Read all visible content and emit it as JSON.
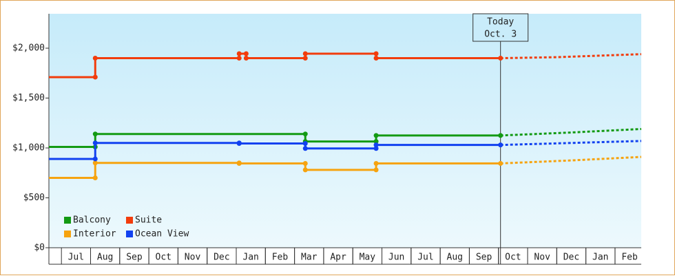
{
  "chart_data": {
    "type": "line",
    "ylim": [
      0,
      2345
    ],
    "yticks": [
      {
        "value": 0,
        "label": "$0"
      },
      {
        "value": 500,
        "label": "$500"
      },
      {
        "value": 1000,
        "label": "$1,000"
      },
      {
        "value": 1500,
        "label": "$1,500"
      },
      {
        "value": 2000,
        "label": "$2,000"
      }
    ],
    "xlim": [
      -0.43,
      19.9
    ],
    "xticks": [
      {
        "value": 0.5,
        "label": "Jul"
      },
      {
        "value": 1.5,
        "label": "Aug"
      },
      {
        "value": 2.5,
        "label": "Sep"
      },
      {
        "value": 3.5,
        "label": "Oct"
      },
      {
        "value": 4.5,
        "label": "Nov"
      },
      {
        "value": 5.5,
        "label": "Dec"
      },
      {
        "value": 6.5,
        "label": "Jan"
      },
      {
        "value": 7.5,
        "label": "Feb"
      },
      {
        "value": 8.5,
        "label": "Mar"
      },
      {
        "value": 9.5,
        "label": "Apr"
      },
      {
        "value": 10.5,
        "label": "May"
      },
      {
        "value": 11.5,
        "label": "Jun"
      },
      {
        "value": 12.5,
        "label": "Jul"
      },
      {
        "value": 13.5,
        "label": "Aug"
      },
      {
        "value": 14.5,
        "label": "Sep"
      },
      {
        "value": 15.5,
        "label": "Oct"
      },
      {
        "value": 16.5,
        "label": "Nov"
      },
      {
        "value": 17.5,
        "label": "Dec"
      },
      {
        "value": 18.5,
        "label": "Jan"
      },
      {
        "value": 19.5,
        "label": "Feb"
      }
    ],
    "annotation": {
      "lines": [
        "Today",
        "Oct. 3"
      ],
      "x": 15.07
    },
    "series": [
      {
        "name": "Balcony",
        "color": "#139a13",
        "x": [
          -0.43,
          1.16,
          1.16,
          8.37,
          8.37,
          10.8,
          10.8,
          15.07
        ],
        "values": [
          1010,
          1010,
          1140,
          1140,
          1065,
          1065,
          1125,
          1125
        ],
        "forecast": {
          "x": [
            15.07,
            17.5,
            19.9
          ],
          "values": [
            1125,
            1155,
            1190
          ]
        }
      },
      {
        "name": "Suite",
        "color": "#f23c0c",
        "x": [
          -0.43,
          1.16,
          1.16,
          6.1,
          6.1,
          6.34,
          6.34,
          8.37,
          8.37,
          10.8,
          10.8,
          15.07
        ],
        "values": [
          1710,
          1710,
          1900,
          1900,
          1945,
          1945,
          1900,
          1900,
          1945,
          1945,
          1900,
          1900
        ],
        "forecast": {
          "x": [
            15.07,
            17,
            19.9
          ],
          "values": [
            1900,
            1910,
            1940
          ]
        }
      },
      {
        "name": "Interior",
        "color": "#f6a30f",
        "x": [
          -0.43,
          1.16,
          1.16,
          6.1,
          6.1,
          8.37,
          8.37,
          10.8,
          10.8,
          15.07
        ],
        "values": [
          700,
          700,
          850,
          850,
          845,
          845,
          780,
          780,
          845,
          845
        ],
        "forecast": {
          "x": [
            15.07,
            17.5,
            19.9
          ],
          "values": [
            845,
            875,
            910
          ]
        }
      },
      {
        "name": "Ocean View",
        "color": "#1141f0",
        "x": [
          -0.43,
          1.16,
          1.16,
          6.1,
          6.1,
          8.37,
          8.37,
          10.8,
          10.8,
          15.07
        ],
        "values": [
          890,
          890,
          1050,
          1050,
          1045,
          1045,
          995,
          995,
          1030,
          1030
        ],
        "forecast": {
          "x": [
            15.07,
            17.5,
            19.9
          ],
          "values": [
            1030,
            1050,
            1070
          ]
        }
      }
    ]
  }
}
